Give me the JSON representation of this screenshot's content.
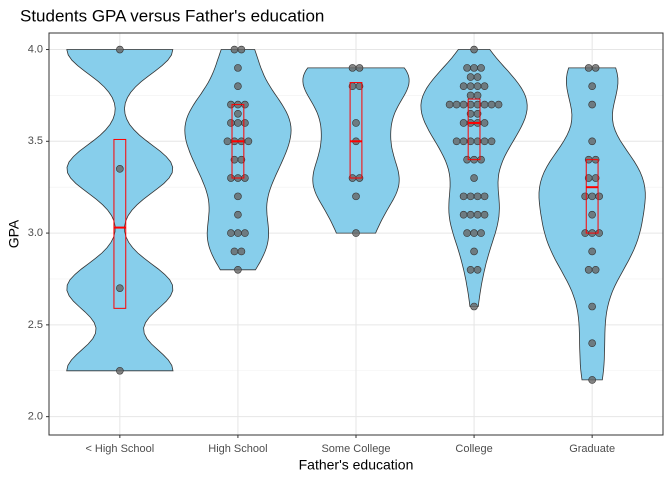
{
  "chart_data": {
    "type": "violin",
    "title": "Students GPA versus Father's education",
    "x_label": "Father's education",
    "y_label": "GPA",
    "categories": [
      "< High School",
      "High School",
      "Some College",
      "College",
      "Graduate"
    ],
    "values": [
      [
        4.0,
        3.35,
        2.7,
        2.25
      ],
      [
        4.0,
        4.0,
        3.9,
        3.8,
        3.7,
        3.7,
        3.7,
        3.65,
        3.6,
        3.6,
        3.6,
        3.5,
        3.5,
        3.5,
        3.5,
        3.4,
        3.4,
        3.3,
        3.3,
        3.3,
        3.2,
        3.1,
        3.0,
        3.0,
        3.0,
        2.9,
        2.9,
        2.8
      ],
      [
        3.9,
        3.9,
        3.8,
        3.8,
        3.6,
        3.5,
        3.3,
        3.3,
        3.2,
        3.0
      ],
      [
        4.0,
        3.9,
        3.9,
        3.9,
        3.85,
        3.85,
        3.8,
        3.8,
        3.8,
        3.8,
        3.75,
        3.75,
        3.7,
        3.7,
        3.7,
        3.7,
        3.7,
        3.7,
        3.7,
        3.7,
        3.65,
        3.65,
        3.6,
        3.6,
        3.6,
        3.6,
        3.5,
        3.5,
        3.5,
        3.5,
        3.5,
        3.5,
        3.4,
        3.4,
        3.4,
        3.3,
        3.2,
        3.2,
        3.2,
        3.2,
        3.1,
        3.1,
        3.1,
        3.1,
        3.0,
        3.0,
        3.0,
        2.9,
        2.8,
        2.8,
        2.6
      ],
      [
        3.9,
        3.9,
        3.8,
        3.7,
        3.5,
        3.4,
        3.4,
        3.3,
        3.3,
        3.2,
        3.2,
        3.2,
        3.1,
        3.0,
        3.0,
        3.0,
        2.9,
        2.8,
        2.8,
        2.6,
        2.4,
        2.2
      ]
    ],
    "quartiles": [
      [
        2.59,
        3.03,
        3.51
      ],
      [
        3.3,
        3.5,
        3.7
      ],
      [
        3.3,
        3.5,
        3.82
      ],
      [
        3.4,
        3.6,
        3.73
      ],
      [
        3.0,
        3.25,
        3.4
      ]
    ],
    "violin_color": "#87CEEB",
    "point_color": "#666666",
    "box_color": "#ff0000",
    "ylim": [
      1.9,
      4.09
    ],
    "yticks": [
      {
        "value": 2,
        "label": "2.0"
      },
      2.5,
      {
        "value": 3,
        "label": "3.0"
      },
      3.5,
      {
        "value": 4,
        "label": "4.0"
      }
    ],
    "grid": true
  }
}
